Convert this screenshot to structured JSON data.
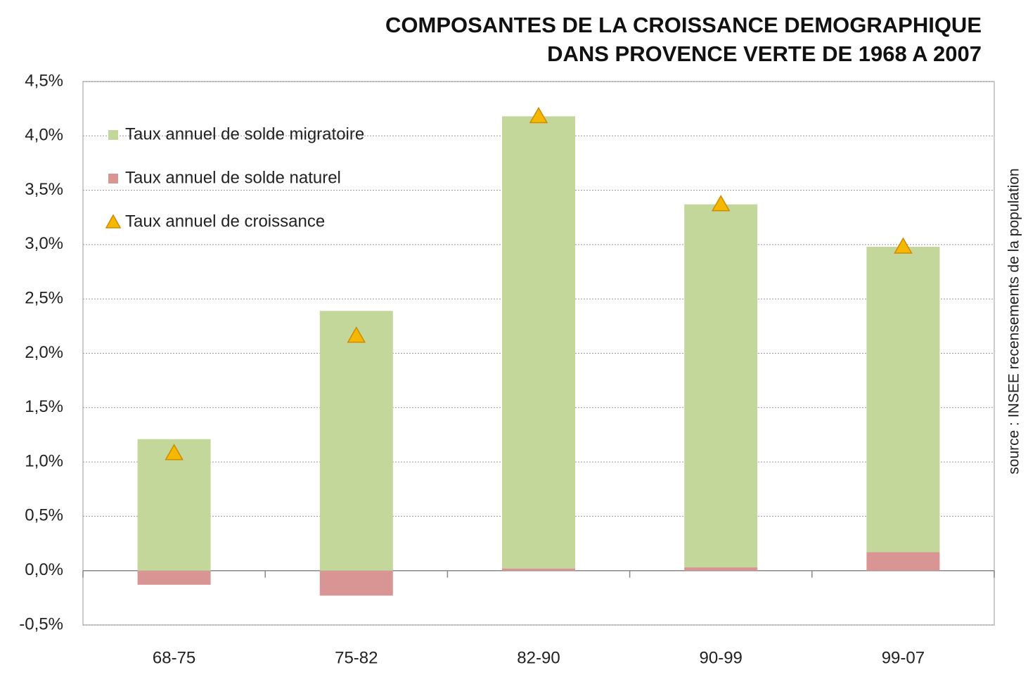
{
  "chart_data": {
    "type": "bar",
    "stacked": true,
    "title": [
      "COMPOSANTES DE LA CROISSANCE DEMOGRAPHIQUE",
      "DANS PROVENCE VERTE DE 1968 A 2007"
    ],
    "source": "source : INSEE recensements de la population",
    "categories": [
      "68-75",
      "75-82",
      "82-90",
      "90-99",
      "99-07"
    ],
    "series": [
      {
        "name": "Taux annuel de solde migratoire",
        "color": "#c4d79b",
        "values": [
          1.21,
          2.39,
          4.16,
          3.34,
          2.81
        ]
      },
      {
        "name": "Taux annuel de solde naturel",
        "color": "#d99594",
        "values": [
          -0.13,
          -0.23,
          0.02,
          0.03,
          0.17
        ]
      },
      {
        "name": "Taux annuel de croissance",
        "color": "#f5b800",
        "marker": "triangle",
        "values": [
          1.08,
          2.16,
          4.18,
          3.37,
          2.98
        ]
      }
    ],
    "ylim": [
      -0.5,
      4.5
    ],
    "yticks": [
      {
        "value": -0.5,
        "label": "-0,5%"
      },
      {
        "value": 0,
        "label": "0,0%"
      },
      {
        "value": 0.5,
        "label": "0,5%"
      },
      {
        "value": 1,
        "label": "1,0%"
      },
      {
        "value": 1.5,
        "label": "1,5%"
      },
      {
        "value": 2,
        "label": "2,0%"
      },
      {
        "value": 2.5,
        "label": "2,5%"
      },
      {
        "value": 3,
        "label": "3,0%"
      },
      {
        "value": 3.5,
        "label": "3,5%"
      },
      {
        "value": 4,
        "label": "4,0%"
      },
      {
        "value": 4.5,
        "label": "4,5%"
      }
    ],
    "grid": true,
    "legend": "upper-left"
  }
}
